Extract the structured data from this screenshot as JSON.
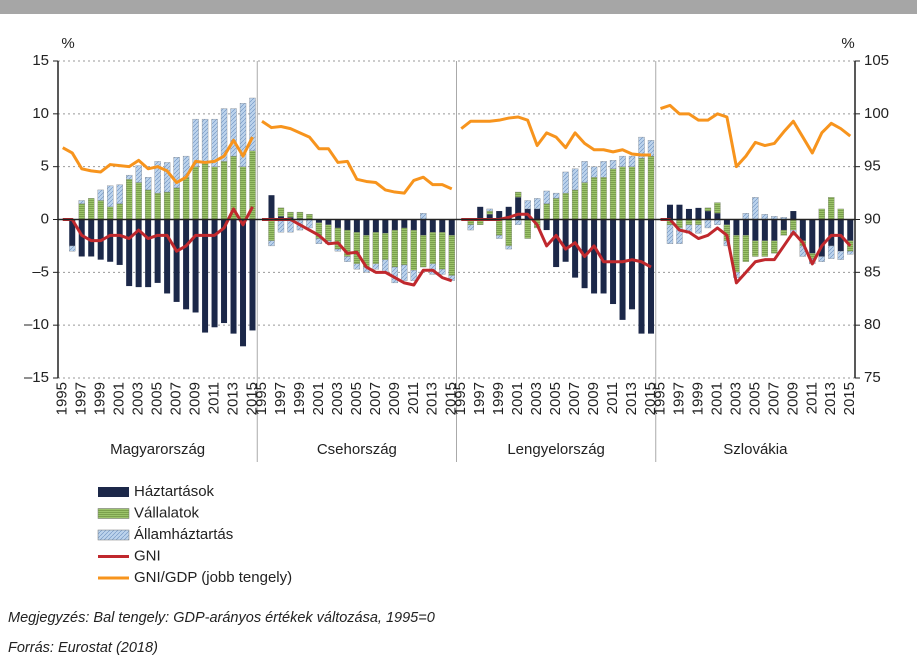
{
  "chart_data": {
    "type": "bar",
    "y_unit": "%",
    "y2_unit": "%",
    "ylim": [
      -15,
      15
    ],
    "yticks": [
      {
        "value": -15,
        "label": "–15"
      },
      {
        "value": -10,
        "label": "–10"
      },
      {
        "value": -5,
        "label": "–5"
      },
      0,
      5,
      10,
      15
    ],
    "y2lim": [
      75,
      105
    ],
    "y2ticks": [
      75,
      80,
      85,
      90,
      95,
      100,
      105
    ],
    "grid": true,
    "categories": [
      "1995",
      null,
      "1997",
      null,
      "1999",
      null,
      "2001",
      null,
      "2003",
      null,
      "2005",
      null,
      "2007",
      null,
      "2009",
      null,
      "2011",
      null,
      "2013",
      null,
      "2015"
    ],
    "series": [
      {
        "name": "Háztartások",
        "color": "#1c2849",
        "type": "bar"
      },
      {
        "name": "Vállalatok",
        "color": "#9cc46b",
        "type": "bar"
      },
      {
        "name": "Államháztartás",
        "color": "#bcd3ec",
        "type": "bar"
      },
      {
        "name": "GNI",
        "color": "#c0282d",
        "type": "line"
      },
      {
        "name": "GNI/GDP (jobb tengely)",
        "color": "#f7941d",
        "type": "line",
        "axis": "y2"
      }
    ],
    "panels": [
      {
        "name": "Magyarország",
        "series": [
          {
            "values": [
              0,
              -2.5,
              -3.5,
              -3.5,
              -3.8,
              -4.0,
              -4.3,
              -6.3,
              -6.4,
              -6.4,
              -6.0,
              -7.0,
              -7.8,
              -8.5,
              -8.8,
              -10.7,
              -10.2,
              -9.8,
              -10.8,
              -12.0,
              -10.5
            ]
          },
          {
            "values": [
              0,
              0,
              1.5,
              2.0,
              1.8,
              1.2,
              1.5,
              3.8,
              3.5,
              2.8,
              2.5,
              2.6,
              3.0,
              4.0,
              5.0,
              5.5,
              5.0,
              5.5,
              6.0,
              5.0,
              6.5
            ]
          },
          {
            "values": [
              0,
              -0.5,
              0.3,
              0,
              1.0,
              2.0,
              1.8,
              0.4,
              1.6,
              1.2,
              3.0,
              2.8,
              2.9,
              2.0,
              4.5,
              4.0,
              4.5,
              5.0,
              4.5,
              6.0,
              5.0
            ]
          },
          {
            "values": [
              0,
              0,
              -1.5,
              -2,
              -2,
              -1.5,
              -1.5,
              -1.8,
              -1,
              -1.8,
              -1.5,
              -1.5,
              -3,
              -2.5,
              -1.5,
              -1.5,
              -1.5,
              -0.8,
              1,
              -0.5,
              1.2
            ]
          },
          {
            "values": [
              96.8,
              96.3,
              94.8,
              94.6,
              94.5,
              95.2,
              95.1,
              95.0,
              95.6,
              94.8,
              95.0,
              94.6,
              93.5,
              94.0,
              95.5,
              95.4,
              95.5,
              96.0,
              97.5,
              96.0,
              97.8
            ]
          }
        ]
      },
      {
        "name": "Csehország",
        "series": [
          {
            "values": [
              0,
              2.3,
              0.3,
              0.2,
              0.1,
              0,
              -0.3,
              -0.5,
              -0.8,
              -1,
              -1.2,
              -1.5,
              -1.2,
              -1.3,
              -1,
              -0.8,
              -1,
              -1.5,
              -1.2,
              -1.2,
              -1.5
            ]
          },
          {
            "values": [
              0,
              -2,
              0.8,
              0.5,
              0.6,
              0.5,
              -1.5,
              -1.5,
              -2,
              -2.5,
              -3,
              -3,
              -3,
              -2.5,
              -3.5,
              -3.5,
              -3.8,
              -3,
              -3,
              -3.5,
              -3.8
            ]
          },
          {
            "values": [
              0,
              -0.5,
              -1.2,
              -1.2,
              -1,
              -0.8,
              -0.5,
              -0.3,
              -0.2,
              -0.5,
              -0.5,
              -0.5,
              -0.5,
              -1.2,
              -1.5,
              -1.5,
              -1,
              0.6,
              -1,
              -0.5,
              -0.5
            ]
          },
          {
            "values": [
              0,
              0,
              0,
              0,
              -0.5,
              -1,
              -1.5,
              -2.3,
              -2.2,
              -3.2,
              -3.1,
              -4.5,
              -5,
              -5,
              -5.5,
              -6,
              -6.2,
              -4.8,
              -4.8,
              -5.5,
              -5.8
            ]
          },
          {
            "values": [
              99.3,
              98.7,
              98.8,
              98.6,
              98.2,
              97.8,
              96.7,
              96.7,
              95.4,
              95.5,
              93.8,
              93.6,
              93.5,
              92.8,
              92.6,
              92.5,
              93.7,
              94.0,
              93.3,
              93.3,
              92.9
            ]
          }
        ]
      },
      {
        "name": "Lengyelország",
        "series": [
          {
            "values": [
              0,
              0,
              1.2,
              0.5,
              0.8,
              1.2,
              2.1,
              1.0,
              1.0,
              -1,
              -4.5,
              -4,
              -5.5,
              -6.5,
              -7,
              -7,
              -8,
              -9.5,
              -8.5,
              -10.8,
              -10.8
            ]
          },
          {
            "values": [
              0,
              -0.5,
              -0.5,
              0.3,
              -1.5,
              -2.5,
              0.5,
              -1.8,
              -0.8,
              1.5,
              2,
              2.5,
              2.8,
              3.5,
              4,
              4,
              4.8,
              5,
              5,
              5.8,
              6
            ]
          },
          {
            "values": [
              0,
              -0.5,
              0,
              0.2,
              -0.3,
              -0.3,
              -0.5,
              0.8,
              1.0,
              1.2,
              0.5,
              2,
              2,
              2,
              1,
              1.5,
              0.8,
              1,
              1,
              2,
              1.5
            ]
          },
          {
            "values": [
              0,
              0,
              0,
              0,
              0,
              0.2,
              0.5,
              0.5,
              -0.5,
              -2.5,
              -1.5,
              -2.8,
              -2.2,
              -3.5,
              -2.5,
              -4,
              -4,
              -4,
              -3.8,
              -4,
              -4.5
            ]
          },
          {
            "values": [
              98.6,
              99.3,
              99.3,
              99.3,
              99.4,
              99.6,
              99.7,
              99.4,
              97.0,
              98.2,
              97.8,
              96.8,
              98.2,
              97.2,
              96.6,
              96.6,
              96.4,
              96.6,
              96.2,
              96.1,
              96.1
            ]
          }
        ]
      },
      {
        "name": "Szlovákia",
        "series": [
          {
            "values": [
              0,
              1.4,
              1.4,
              1.0,
              1.1,
              0.8,
              0.6,
              -0.5,
              -1.5,
              -1.5,
              -2,
              -2,
              -2,
              -1,
              0.8,
              -2,
              -3.2,
              -3.5,
              -2.5,
              -3,
              -2
            ]
          },
          {
            "values": [
              0,
              -0.5,
              -0.8,
              -0.5,
              -0.5,
              0.3,
              1.0,
              -1.5,
              -3.5,
              -2.5,
              -1.5,
              -1.5,
              -1.2,
              -0.5,
              -1,
              -0.5,
              -0.5,
              1.0,
              2.1,
              1.0,
              -1
            ]
          },
          {
            "values": [
              0,
              -1.8,
              -1.5,
              -0.8,
              -0.8,
              -0.8,
              -0.5,
              -0.5,
              -0.5,
              0.6,
              2.1,
              0.5,
              0.3,
              0.2,
              -0.5,
              -1,
              -0.5,
              -0.5,
              -1.2,
              -0.8,
              -0.3
            ]
          },
          {
            "values": [
              0,
              0,
              -1,
              -1.2,
              -1.8,
              -1.5,
              -0.8,
              -1.5,
              -6,
              -5,
              -4,
              -3.8,
              -3.8,
              -2.5,
              -1.2,
              -2.2,
              -4.2,
              -2.5,
              -1.5,
              -1.5,
              -2.5
            ]
          },
          {
            "values": [
              100.5,
              100.8,
              100.0,
              100.0,
              99.4,
              99.4,
              100.0,
              99.7,
              95.0,
              96.0,
              97.3,
              97.0,
              97.2,
              98.3,
              99.3,
              97.8,
              96.3,
              98.2,
              99.1,
              98.6,
              97.9
            ]
          }
        ]
      }
    ],
    "note": "Megjegyzés: Bal tengely: GDP-arányos értékek változása, 1995=0",
    "source": "Forrás: Eurostat (2018)"
  }
}
